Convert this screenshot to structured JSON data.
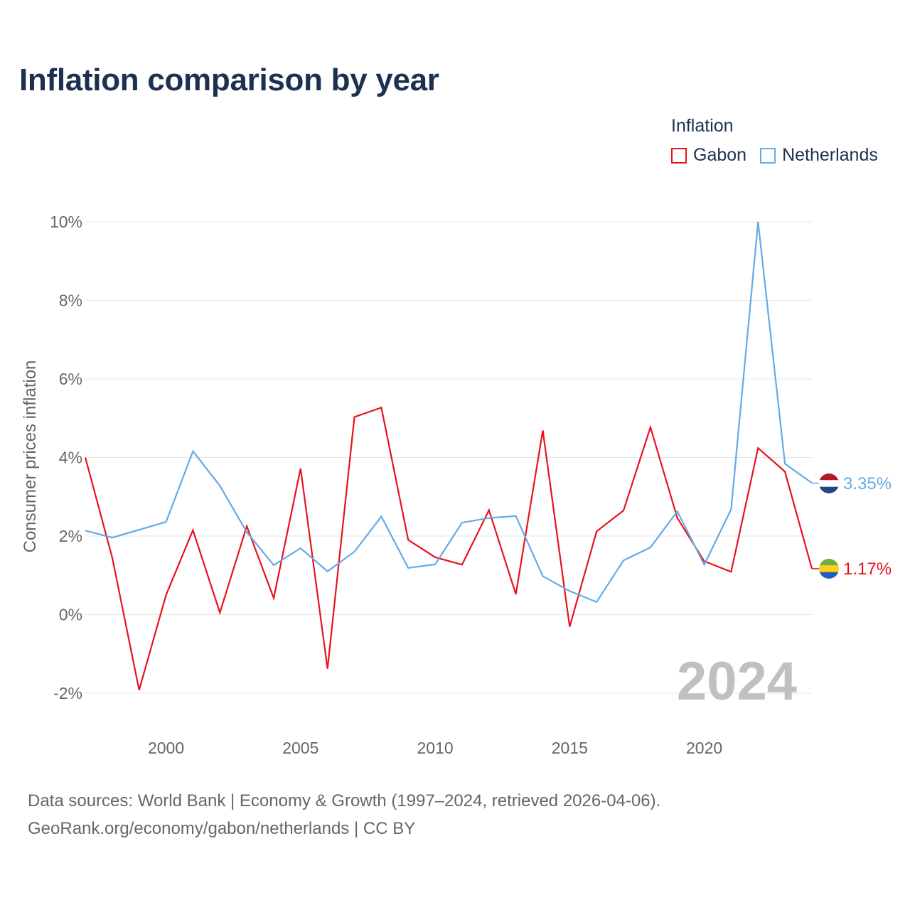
{
  "title": "Inflation comparison by year",
  "legend": {
    "title": "Inflation",
    "items": [
      {
        "label": "Gabon",
        "color": "#e8121d"
      },
      {
        "label": "Netherlands",
        "color": "#65a9e7"
      }
    ]
  },
  "chart_data": {
    "type": "line",
    "title": "Inflation comparison by year",
    "ylabel": "Consumer prices inflation",
    "xlabel": "",
    "x": [
      1997,
      1998,
      1999,
      2000,
      2001,
      2002,
      2003,
      2004,
      2005,
      2006,
      2007,
      2008,
      2009,
      2010,
      2011,
      2012,
      2013,
      2014,
      2015,
      2016,
      2017,
      2018,
      2019,
      2020,
      2021,
      2022,
      2023,
      2024
    ],
    "ylim": [
      -3,
      10.5
    ],
    "xlim": [
      1997,
      2024
    ],
    "y_ticks": [
      -2,
      0,
      2,
      4,
      6,
      8,
      10
    ],
    "y_tick_labels": [
      "-2%",
      "0%",
      "2%",
      "4%",
      "6%",
      "8%",
      "10%"
    ],
    "x_ticks": [
      2000,
      2005,
      2010,
      2015,
      2020
    ],
    "x_tick_labels": [
      "2000",
      "2005",
      "2010",
      "2015",
      "2020"
    ],
    "grid": true,
    "year_watermark": "2024",
    "series": [
      {
        "name": "Gabon",
        "color": "#e8121d",
        "end_label": "1.17%",
        "flag": "gabon",
        "values": [
          4.0,
          1.45,
          -1.92,
          0.5,
          2.15,
          0.05,
          2.25,
          0.42,
          3.72,
          -1.38,
          5.03,
          5.27,
          1.9,
          1.46,
          1.27,
          2.66,
          0.52,
          4.69,
          -0.31,
          2.12,
          2.65,
          4.77,
          2.46,
          1.36,
          1.09,
          4.24,
          3.64,
          1.17
        ]
      },
      {
        "name": "Netherlands",
        "color": "#65a9e7",
        "end_label": "3.35%",
        "flag": "netherlands",
        "values": [
          2.14,
          1.96,
          2.16,
          2.36,
          4.16,
          3.28,
          2.1,
          1.26,
          1.69,
          1.1,
          1.6,
          2.5,
          1.19,
          1.28,
          2.34,
          2.46,
          2.51,
          0.98,
          0.6,
          0.32,
          1.38,
          1.71,
          2.63,
          1.27,
          2.68,
          10.0,
          3.84,
          3.35
        ]
      }
    ]
  },
  "footer": {
    "line1": "Data sources: World Bank | Economy & Growth (1997–2024, retrieved 2026-04-06).",
    "line2": "GeoRank.org/economy/gabon/netherlands | CC BY"
  }
}
